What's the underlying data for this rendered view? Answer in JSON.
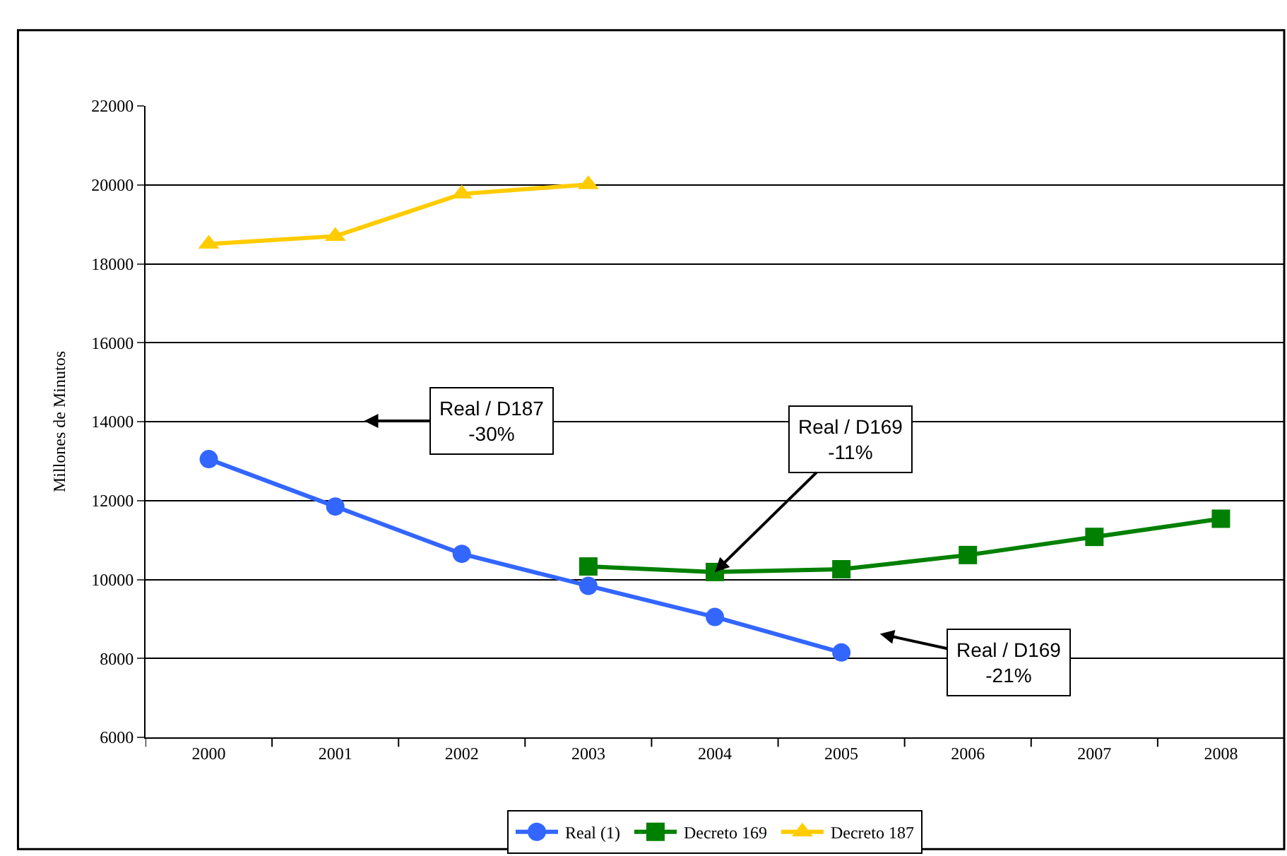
{
  "chart_data": {
    "type": "line",
    "ylabel": "Millones de Minutos",
    "categories": [
      "2000",
      "2001",
      "2002",
      "2003",
      "2004",
      "2005",
      "2006",
      "2007",
      "2008"
    ],
    "series": [
      {
        "name": "Real (1)",
        "color": "#3366ff",
        "marker": "circle",
        "values": [
          13050,
          11850,
          10650,
          9840,
          9050,
          8150,
          null,
          null,
          null
        ]
      },
      {
        "name": "Decreto 169",
        "color": "#008000",
        "marker": "square",
        "values": [
          null,
          null,
          null,
          10330,
          10190,
          10260,
          10620,
          11080,
          11540
        ]
      },
      {
        "name": "Decreto 187",
        "color": "#ffcc00",
        "marker": "triangle",
        "values": [
          18500,
          18700,
          19770,
          20010,
          null,
          null,
          null,
          null,
          null
        ]
      }
    ],
    "ylim": [
      6000,
      22000
    ],
    "yticks": [
      6000,
      8000,
      10000,
      12000,
      14000,
      16000,
      18000,
      20000,
      22000
    ],
    "grid": "y",
    "legend": "bottom",
    "line_style": "solid",
    "annotations": [
      "Real / D187\n-30%",
      {
        "text": "Real / D169\n-11%",
        "x": "2004",
        "y": 10190
      },
      "Real / D169\n-21%"
    ]
  }
}
